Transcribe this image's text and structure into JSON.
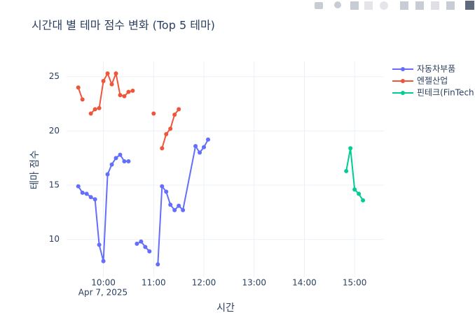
{
  "chart_data": {
    "type": "line",
    "title": "시간대 별 테마 점수 변화 (Top 5 테마)",
    "x_label": "시간",
    "y_label": "테마 점수",
    "x_date_label": "Apr 7, 2025",
    "xlim": [
      "2025-04-07 09:16",
      "2025-04-07 15:35"
    ],
    "xticks": [
      {
        "value": "2025-04-07 10:00",
        "label": "10:00"
      },
      {
        "value": "2025-04-07 11:00",
        "label": "11:00"
      },
      {
        "value": "2025-04-07 12:00",
        "label": "12:00"
      },
      {
        "value": "2025-04-07 13:00",
        "label": "13:00"
      },
      {
        "value": "2025-04-07 14:00",
        "label": "14:00"
      },
      {
        "value": "2025-04-07 15:00",
        "label": "15:00"
      }
    ],
    "ylim": [
      6.5,
      26.4
    ],
    "yticks": [
      10,
      15,
      20,
      25
    ],
    "grid": true,
    "legend": "right",
    "series": [
      {
        "name": "자동차부품",
        "color": "#636efa",
        "x": [
          "2025-04-07 09:30",
          "2025-04-07 09:35",
          "2025-04-07 09:40",
          "2025-04-07 09:45",
          "2025-04-07 09:50",
          "2025-04-07 09:55",
          "2025-04-07 10:00",
          "2025-04-07 10:05",
          "2025-04-07 10:10",
          "2025-04-07 10:15",
          "2025-04-07 10:20",
          "2025-04-07 10:25",
          "2025-04-07 10:30",
          "2025-04-07 10:35",
          "2025-04-07 10:40",
          "2025-04-07 10:45",
          "2025-04-07 10:50",
          "2025-04-07 10:55",
          "2025-04-07 11:00",
          "2025-04-07 11:05",
          "2025-04-07 11:10",
          "2025-04-07 11:15",
          "2025-04-07 11:20",
          "2025-04-07 11:25",
          "2025-04-07 11:30",
          "2025-04-07 11:35",
          "2025-04-07 11:50",
          "2025-04-07 11:55",
          "2025-04-07 12:00",
          "2025-04-07 12:05"
        ],
        "values": [
          14.9,
          14.3,
          14.2,
          13.9,
          13.7,
          9.5,
          8.0,
          16.0,
          16.9,
          17.5,
          17.8,
          17.2,
          17.2,
          null,
          9.6,
          9.8,
          9.3,
          8.9,
          null,
          7.7,
          14.9,
          14.4,
          13.2,
          12.7,
          13.1,
          12.7,
          18.6,
          18.0,
          18.5,
          19.2
        ]
      },
      {
        "name": "엔젤산업",
        "color": "#ef553b",
        "x": [
          "2025-04-07 09:30",
          "2025-04-07 09:35",
          "2025-04-07 09:40",
          "2025-04-07 09:45",
          "2025-04-07 09:50",
          "2025-04-07 09:55",
          "2025-04-07 10:00",
          "2025-04-07 10:05",
          "2025-04-07 10:10",
          "2025-04-07 10:15",
          "2025-04-07 10:20",
          "2025-04-07 10:25",
          "2025-04-07 10:30",
          "2025-04-07 10:35",
          "2025-04-07 10:40",
          "2025-04-07 11:00",
          "2025-04-07 11:05",
          "2025-04-07 11:10",
          "2025-04-07 11:15",
          "2025-04-07 11:20",
          "2025-04-07 11:25",
          "2025-04-07 11:30"
        ],
        "values": [
          24.0,
          22.9,
          null,
          21.6,
          22.0,
          22.1,
          24.6,
          25.3,
          24.3,
          25.3,
          23.3,
          23.2,
          23.6,
          23.7,
          null,
          21.6,
          null,
          18.4,
          19.7,
          20.2,
          21.5,
          22.0
        ]
      },
      {
        "name": "핀테크(FinTech)",
        "color": "#00cc96",
        "x": [
          "2025-04-07 14:50",
          "2025-04-07 14:55",
          "2025-04-07 15:00",
          "2025-04-07 15:05",
          "2025-04-07 15:10"
        ],
        "values": [
          16.3,
          18.4,
          14.6,
          14.2,
          13.6
        ]
      }
    ]
  }
}
